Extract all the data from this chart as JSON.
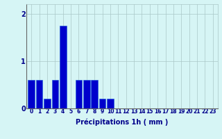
{
  "values": [
    0.6,
    0.6,
    0.2,
    0.6,
    1.75,
    0.0,
    0.6,
    0.6,
    0.6,
    0.2,
    0.2,
    0.0,
    0.0,
    0.0,
    0.0,
    0.0,
    0.0,
    0.0,
    0.0,
    0.0,
    0.0,
    0.0,
    0.0,
    0.0
  ],
  "categories": [
    "0",
    "1",
    "2",
    "3",
    "4",
    "5",
    "6",
    "7",
    "8",
    "9",
    "10",
    "11",
    "12",
    "13",
    "14",
    "15",
    "16",
    "17",
    "18",
    "19",
    "20",
    "21",
    "22",
    "23"
  ],
  "bar_color": "#0000cc",
  "edge_color": "#1a5cd9",
  "background_color": "#d6f5f5",
  "grid_color": "#aac8c8",
  "xlabel": "Précipitations 1h ( mm )",
  "xlabel_color": "#00008b",
  "xlabel_fontsize": 7,
  "tick_color": "#00008b",
  "tick_fontsize": 5.5,
  "ytick_fontsize": 7,
  "ylim": [
    0,
    2.2
  ],
  "yticks": [
    0,
    1,
    2
  ],
  "figsize": [
    3.2,
    2.0
  ],
  "dpi": 100
}
